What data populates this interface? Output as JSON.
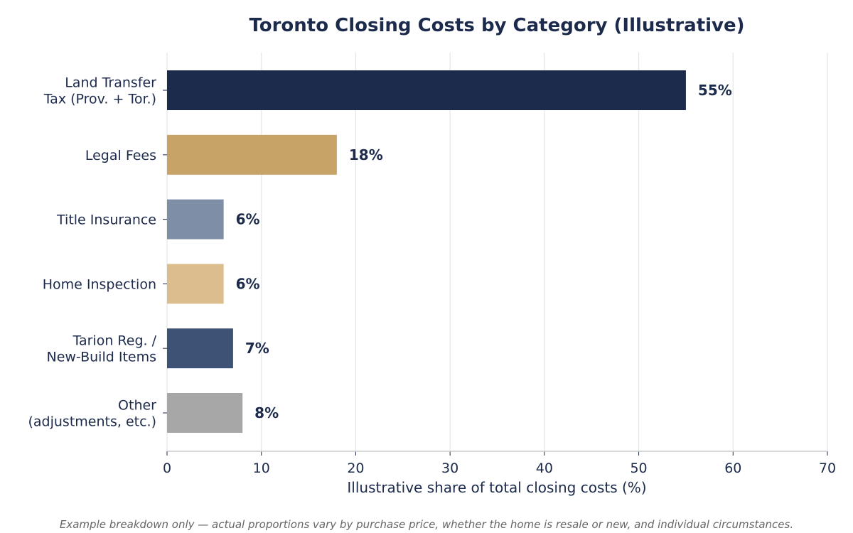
{
  "chart_data": {
    "type": "bar",
    "orientation": "horizontal",
    "title": "Toronto Closing Costs by Category (Illustrative)",
    "xlabel": "Illustrative share of total closing costs (%)",
    "ylabel": "",
    "xlim": [
      0,
      70
    ],
    "xticks": [
      "0",
      "10",
      "20",
      "30",
      "40",
      "50",
      "60",
      "70"
    ],
    "grid": "vertical",
    "categories": [
      [
        "Land Transfer",
        "Tax (Prov. + Tor.)"
      ],
      [
        "Legal Fees"
      ],
      [
        "Title Insurance"
      ],
      [
        "Home Inspection"
      ],
      [
        "Tarion Reg. /",
        "New-Build Items"
      ],
      [
        "Other",
        "(adjustments, etc.)"
      ]
    ],
    "values": [
      55,
      18,
      6,
      6,
      7,
      8
    ],
    "value_labels": [
      "55%",
      "18%",
      "6%",
      "6%",
      "7%",
      "8%"
    ],
    "bar_colors": [
      "#1c2a4b",
      "#c8a368",
      "#7d8ea6",
      "#dcbd8e",
      "#3e5275",
      "#a7a7a7"
    ],
    "footnote": "Example breakdown only — actual proportions vary by purchase price, whether the home is resale or new, and individual circumstances."
  },
  "colors": {
    "text": "#1c2a4b",
    "footnote": "#666666",
    "grid": "#e5e5e5",
    "axis": "#cccccc"
  }
}
